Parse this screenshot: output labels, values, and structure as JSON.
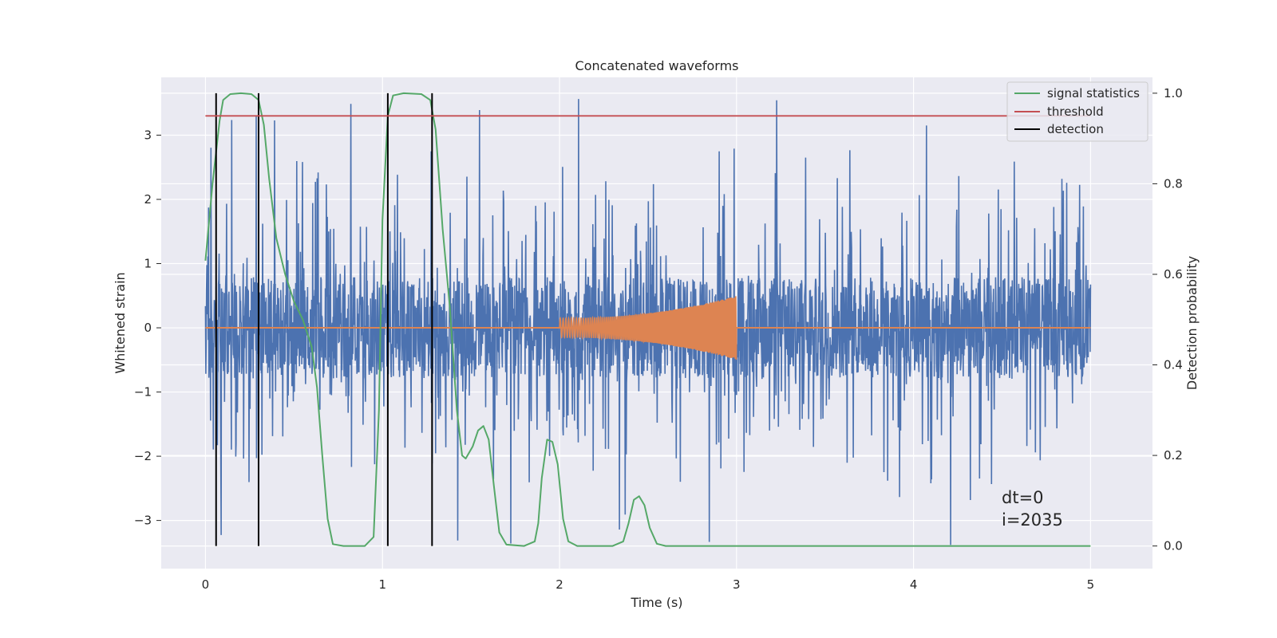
{
  "chart_data": {
    "type": "line",
    "title": "Concatenated waveforms",
    "xlabel": "Time (s)",
    "ylabel": "Whitened strain",
    "ylabel_right": "Detection probability",
    "xlim": [
      -0.25,
      5.35
    ],
    "ylim": [
      -3.75,
      3.9
    ],
    "ylim_right": [
      -0.05,
      1.035
    ],
    "x_ticks": [
      0,
      1,
      2,
      3,
      4,
      5
    ],
    "x_tick_labels": [
      "0",
      "1",
      "2",
      "3",
      "4",
      "5"
    ],
    "y_ticks": [
      -3,
      -2,
      -1,
      0,
      1,
      2,
      3
    ],
    "y_tick_labels": [
      "−3",
      "−2",
      "−1",
      "0",
      "1",
      "2",
      "3"
    ],
    "y_ticks_right": [
      0.0,
      0.2,
      0.4,
      0.6,
      0.8,
      1.0
    ],
    "y_tick_labels_right": [
      "0.0",
      "0.2",
      "0.4",
      "0.6",
      "0.8",
      "1.0"
    ],
    "grid": true,
    "legend_position": "top-right",
    "colors": {
      "noise": "#4c72b0",
      "waveform": "#dd8452",
      "signal_statistics": "#55a868",
      "threshold": "#c44e52",
      "detection": "#000000",
      "plot_bg": "#eaeaf2",
      "grid": "#ffffff"
    },
    "series": [
      {
        "name": "signal statistics",
        "axis": "right",
        "color": "#55a868",
        "points": [
          [
            0.0,
            0.63
          ],
          [
            0.04,
            0.8
          ],
          [
            0.08,
            0.94
          ],
          [
            0.1,
            0.985
          ],
          [
            0.14,
            0.998
          ],
          [
            0.2,
            1.0
          ],
          [
            0.26,
            0.998
          ],
          [
            0.3,
            0.985
          ],
          [
            0.33,
            0.93
          ],
          [
            0.36,
            0.81
          ],
          [
            0.4,
            0.68
          ],
          [
            0.45,
            0.6
          ],
          [
            0.5,
            0.54
          ],
          [
            0.55,
            0.5
          ],
          [
            0.6,
            0.44
          ],
          [
            0.63,
            0.35
          ],
          [
            0.66,
            0.2
          ],
          [
            0.69,
            0.06
          ],
          [
            0.72,
            0.004
          ],
          [
            0.78,
            0.0
          ],
          [
            0.9,
            0.0
          ],
          [
            0.95,
            0.02
          ],
          [
            0.98,
            0.3
          ],
          [
            1.0,
            0.72
          ],
          [
            1.03,
            0.95
          ],
          [
            1.06,
            0.995
          ],
          [
            1.12,
            1.0
          ],
          [
            1.22,
            0.998
          ],
          [
            1.27,
            0.985
          ],
          [
            1.3,
            0.92
          ],
          [
            1.34,
            0.7
          ],
          [
            1.38,
            0.53
          ],
          [
            1.42,
            0.3
          ],
          [
            1.45,
            0.2
          ],
          [
            1.47,
            0.193
          ],
          [
            1.51,
            0.22
          ],
          [
            1.54,
            0.255
          ],
          [
            1.57,
            0.265
          ],
          [
            1.6,
            0.235
          ],
          [
            1.63,
            0.13
          ],
          [
            1.66,
            0.03
          ],
          [
            1.7,
            0.003
          ],
          [
            1.8,
            0.0
          ],
          [
            1.86,
            0.01
          ],
          [
            1.88,
            0.05
          ],
          [
            1.9,
            0.15
          ],
          [
            1.93,
            0.235
          ],
          [
            1.96,
            0.23
          ],
          [
            1.99,
            0.18
          ],
          [
            2.02,
            0.06
          ],
          [
            2.05,
            0.01
          ],
          [
            2.1,
            0.0
          ],
          [
            2.3,
            0.0
          ],
          [
            2.36,
            0.01
          ],
          [
            2.39,
            0.05
          ],
          [
            2.42,
            0.102
          ],
          [
            2.45,
            0.11
          ],
          [
            2.48,
            0.09
          ],
          [
            2.51,
            0.04
          ],
          [
            2.55,
            0.005
          ],
          [
            2.6,
            0.0
          ],
          [
            5.0,
            0.0
          ]
        ]
      },
      {
        "name": "threshold",
        "axis": "right",
        "color": "#c44e52",
        "points": [
          [
            0.0,
            0.95
          ],
          [
            5.0,
            0.95
          ]
        ]
      },
      {
        "name": "detection",
        "axis": "right",
        "color": "#000000",
        "vertical_lines_x": [
          0.06,
          0.3,
          1.03,
          1.28
        ],
        "y_range": [
          0.0,
          1.0
        ]
      }
    ],
    "noise": {
      "x_range": [
        0.0,
        5.0
      ],
      "band": [
        -0.75,
        0.75
      ],
      "spikes_max": 3.58,
      "spikes_min": -3.4
    },
    "waveform": {
      "name": "",
      "x_range": [
        2.0,
        3.0
      ],
      "amplitude_start": 0.15,
      "amplitude_end": 0.5
    },
    "legend": [
      "signal statistics",
      "threshold",
      "detection"
    ],
    "annotations": [
      "dt=0",
      "i=2035"
    ]
  }
}
